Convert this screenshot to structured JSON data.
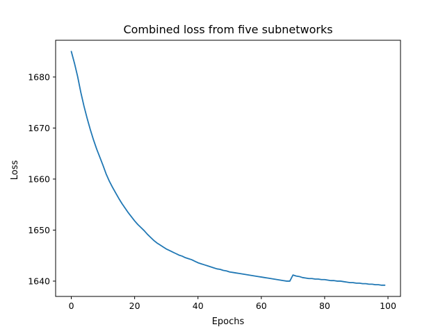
{
  "chart_data": {
    "type": "line",
    "title": "Combined loss from five subnetworks",
    "xlabel": "Epochs",
    "ylabel": "Loss",
    "xlim": [
      -4.95,
      103.95
    ],
    "ylim": [
      1637.0,
      1687.2
    ],
    "xticks": [
      0,
      20,
      40,
      60,
      80,
      100
    ],
    "yticks": [
      1640,
      1650,
      1660,
      1670,
      1680
    ],
    "xtick_labels": [
      "0",
      "20",
      "40",
      "60",
      "80",
      "100"
    ],
    "ytick_labels": [
      "1640",
      "1650",
      "1660",
      "1670",
      "1680"
    ],
    "grid": false,
    "line_color": "#1f77b4",
    "series": [
      {
        "x": [
          0,
          1,
          2,
          3,
          4,
          5,
          6,
          7,
          8,
          9,
          10,
          11,
          12,
          13,
          14,
          15,
          16,
          17,
          18,
          19,
          20,
          21,
          22,
          23,
          24,
          25,
          26,
          27,
          28,
          29,
          30,
          31,
          32,
          33,
          34,
          35,
          36,
          37,
          38,
          39,
          40,
          41,
          42,
          43,
          44,
          45,
          46,
          47,
          48,
          49,
          50,
          51,
          52,
          53,
          54,
          55,
          56,
          57,
          58,
          59,
          60,
          61,
          62,
          63,
          64,
          65,
          66,
          67,
          68,
          69,
          70,
          71,
          72,
          73,
          74,
          75,
          76,
          77,
          78,
          79,
          80,
          81,
          82,
          83,
          84,
          85,
          86,
          87,
          88,
          89,
          90,
          91,
          92,
          93,
          94,
          95,
          96,
          97,
          98,
          99
        ],
        "y": [
          1685.0,
          1682.7,
          1680.1,
          1677.0,
          1674.3,
          1671.9,
          1669.7,
          1667.7,
          1665.9,
          1664.3,
          1662.7,
          1661.0,
          1659.6,
          1658.4,
          1657.3,
          1656.2,
          1655.2,
          1654.3,
          1653.4,
          1652.6,
          1651.8,
          1651.1,
          1650.5,
          1649.9,
          1649.2,
          1648.6,
          1648.0,
          1647.5,
          1647.1,
          1646.7,
          1646.3,
          1646.0,
          1645.7,
          1645.4,
          1645.1,
          1644.9,
          1644.6,
          1644.4,
          1644.2,
          1643.9,
          1643.6,
          1643.4,
          1643.2,
          1643.0,
          1642.8,
          1642.6,
          1642.4,
          1642.3,
          1642.1,
          1642.0,
          1641.8,
          1641.7,
          1641.6,
          1641.5,
          1641.4,
          1641.3,
          1641.2,
          1641.1,
          1641.0,
          1640.9,
          1640.8,
          1640.7,
          1640.6,
          1640.5,
          1640.4,
          1640.3,
          1640.2,
          1640.1,
          1640.0,
          1640.0,
          1641.2,
          1641.0,
          1640.9,
          1640.7,
          1640.6,
          1640.5,
          1640.5,
          1640.4,
          1640.4,
          1640.3,
          1640.3,
          1640.2,
          1640.1,
          1640.1,
          1640.0,
          1640.0,
          1639.9,
          1639.8,
          1639.7,
          1639.7,
          1639.6,
          1639.6,
          1639.5,
          1639.5,
          1639.4,
          1639.4,
          1639.3,
          1639.3,
          1639.2,
          1639.2
        ]
      }
    ]
  }
}
